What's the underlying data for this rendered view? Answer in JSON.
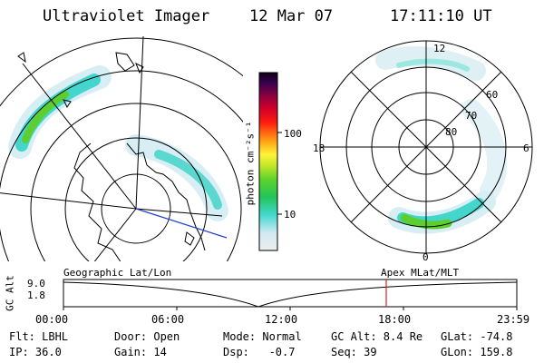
{
  "header": {
    "title": "Ultraviolet Imager",
    "date": "12 Mar 07",
    "time": "17:11:10 UT"
  },
  "colorbar": {
    "unit_label": "photon cm⁻²s⁻¹",
    "ticks": [
      "100",
      "10"
    ]
  },
  "polar_plot": {
    "mlt_labels": [
      "12",
      "18",
      "6",
      "0"
    ],
    "lat_labels": [
      "60",
      "70",
      "80"
    ]
  },
  "timeline": {
    "left_title": "Geographic Lat/Lon",
    "right_title": "Apex MLat/MLT",
    "y_axis_label": "GC Alt",
    "y_ticks": [
      "9.0",
      "1.8"
    ],
    "x_ticks": [
      "00:00",
      "06:00",
      "12:00",
      "18:00",
      "23:59"
    ]
  },
  "footer": {
    "flt": "Flt: LBHL",
    "ip": "IP: 36.0",
    "door": "Door: Open",
    "gain": "Gain: 14",
    "mode": "Mode: Normal",
    "dsp": "Dsp:   -0.7",
    "gc_alt": "GC Alt: 8.4 Re",
    "seq": "Seq: 39",
    "glat": "GLat: -74.8",
    "glon": "GLon: 159.8"
  },
  "colors": {
    "foreground": "#000000",
    "marker": "#dd2222",
    "track": "#1f3fcc"
  }
}
